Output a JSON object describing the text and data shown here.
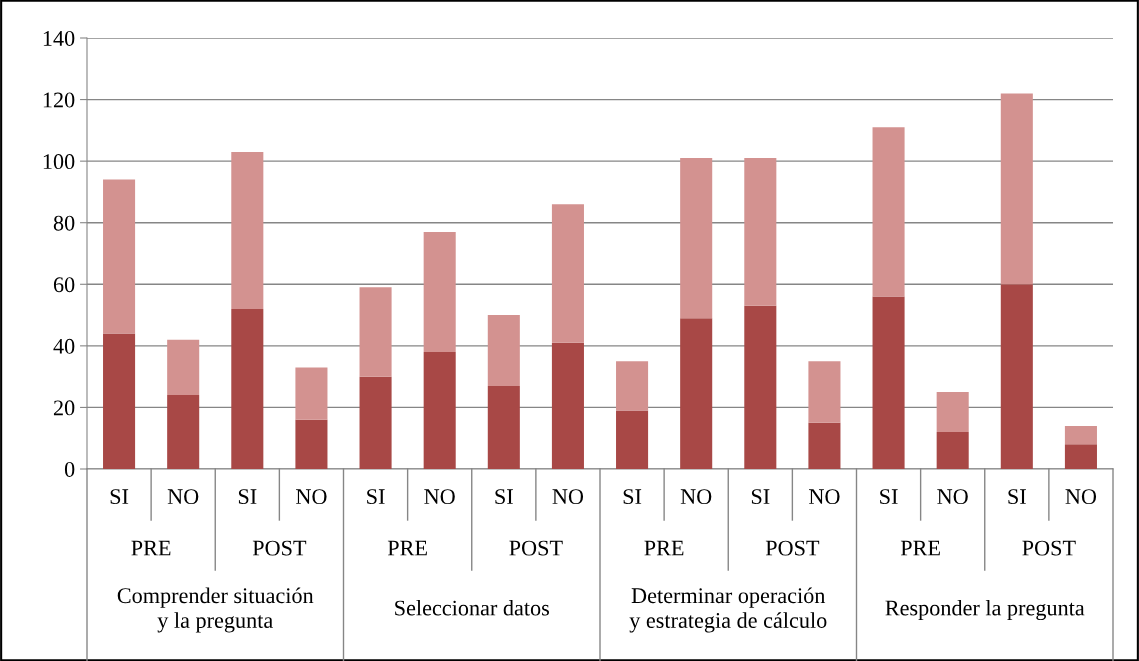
{
  "chart_data": {
    "type": "bar",
    "stacked": true,
    "categories": [
      "SI",
      "NO",
      "SI",
      "NO",
      "SI",
      "NO",
      "SI",
      "NO",
      "SI",
      "NO",
      "SI",
      "NO",
      "SI",
      "NO",
      "SI",
      "NO"
    ],
    "series": [
      {
        "color": "#a84846",
        "values": [
          44,
          24,
          52,
          16,
          30,
          38,
          27,
          41,
          19,
          49,
          53,
          15,
          56,
          12,
          60,
          8
        ]
      },
      {
        "color": "#d39290",
        "values": [
          50,
          18,
          51,
          17,
          29,
          39,
          23,
          45,
          16,
          52,
          48,
          20,
          55,
          13,
          62,
          6
        ]
      }
    ],
    "annotations": [
      "PRE",
      "POST",
      "PRE",
      "POST",
      "PRE",
      "POST",
      "PRE",
      "POST",
      "Comprender situación\ny la pregunta",
      "Seleccionar datos",
      "Determinar operación\ny estrategia de cálculo",
      "Responder la pregunta"
    ],
    "ylim": [
      0,
      140
    ],
    "yticks": [
      0,
      20,
      40,
      60,
      80,
      100,
      120,
      140
    ],
    "grid": "y"
  }
}
